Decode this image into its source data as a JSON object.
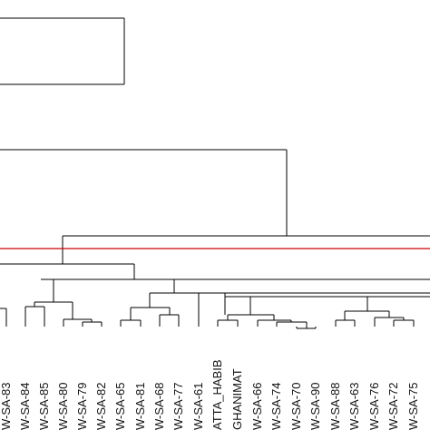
{
  "chart_data": {
    "type": "dendrogram",
    "colors": {
      "branch": "#000000",
      "cutoff": "#cc0000"
    },
    "leaves": [
      "W-SA-83",
      "W-SA-84",
      "W-SA-85",
      "W-SA-80",
      "W-SA-79",
      "W-SA-82",
      "W-SA-65",
      "W-SA-81",
      "W-SA-68",
      "W-SA-77",
      "W-SA-61",
      "ATTA_HABIB",
      "GHANIMAT",
      "W-SA-66",
      "W-SA-74",
      "W-SA-70",
      "W-SA-90",
      "W-SA-88",
      "W-SA-63",
      "W-SA-76",
      "W-SA-72",
      "W-SA-75"
    ]
  }
}
